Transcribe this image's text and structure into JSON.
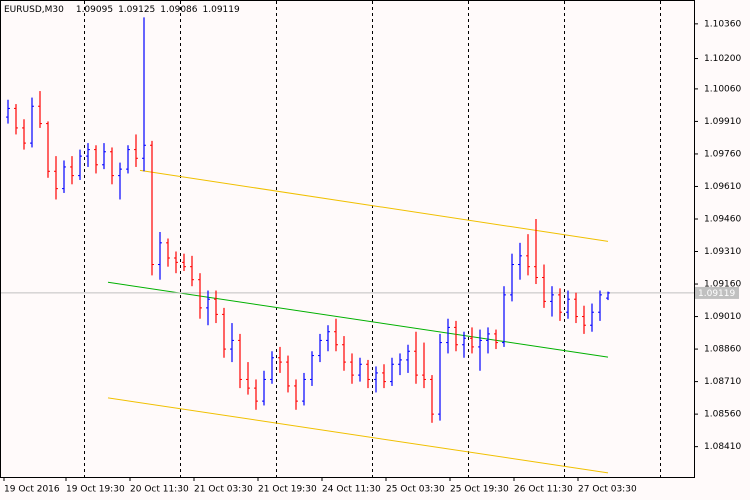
{
  "chart_data": {
    "type": "ohlc",
    "title": "EURUSD,M30",
    "last_ohlc": [
      1.09095,
      1.09125,
      1.09086,
      1.09119
    ],
    "bid": 1.09119,
    "up_color": "#0000ff",
    "down_color": "#ff0000",
    "bid_color": "#c0c0c0",
    "xlim": [
      0,
      345
    ],
    "ylim": [
      1.0827,
      1.1047
    ],
    "yticks": [
      {
        "value": 1.1036,
        "label": "1.10360"
      },
      {
        "value": 1.102,
        "label": "1.10200"
      },
      {
        "value": 1.1006,
        "label": "1.10060"
      },
      {
        "value": 1.0991,
        "label": "1.09910"
      },
      {
        "value": 1.0976,
        "label": "1.09760"
      },
      {
        "value": 1.0961,
        "label": "1.09610"
      },
      {
        "value": 1.0946,
        "label": "1.09460"
      },
      {
        "value": 1.0931,
        "label": "1.09310"
      },
      {
        "value": 1.0916,
        "label": "1.09160"
      },
      {
        "value": 1.0901,
        "label": "1.09010"
      },
      {
        "value": 1.0886,
        "label": "1.08860"
      },
      {
        "value": 1.0871,
        "label": "1.08710"
      },
      {
        "value": 1.0856,
        "label": "1.08560"
      },
      {
        "value": 1.0841,
        "label": "1.08410"
      }
    ],
    "xticks": [
      {
        "value": 0,
        "label": "19 Oct 2016"
      },
      {
        "value": 31,
        "label": "19 Oct 19:30"
      },
      {
        "value": 63,
        "label": "20 Oct 11:30"
      },
      {
        "value": 95,
        "label": "21 Oct 03:30"
      },
      {
        "value": 127,
        "label": "21 Oct 19:30"
      },
      {
        "value": 159,
        "label": "24 Oct 11:30"
      },
      {
        "value": 191,
        "label": "25 Oct 03:30"
      },
      {
        "value": 223,
        "label": "25 Oct 19:30"
      },
      {
        "value": 255,
        "label": "26 Oct 11:30"
      },
      {
        "value": 287,
        "label": "27 Oct 03:30"
      }
    ],
    "separators": [
      40,
      88,
      136,
      184,
      232,
      280,
      328
    ],
    "x": [
      2,
      6,
      10,
      14,
      18,
      22,
      26,
      30,
      34,
      38,
      42,
      46,
      50,
      54,
      58,
      62,
      66,
      70,
      74,
      78,
      82,
      86,
      90,
      94,
      98,
      102,
      106,
      110,
      114,
      118,
      122,
      126,
      130,
      134,
      138,
      142,
      146,
      150,
      154,
      158,
      162,
      166,
      170,
      174,
      178,
      182,
      186,
      190,
      194,
      198,
      202,
      206,
      210,
      214,
      218,
      222,
      226,
      230,
      234,
      238,
      242,
      246,
      250,
      254,
      258,
      262,
      266,
      270,
      274,
      278,
      282,
      286,
      290,
      294,
      298,
      302
    ],
    "open": [
      1.0993,
      1.0997,
      1.0988,
      1.0981,
      1.0998,
      1.099,
      1.0968,
      1.096,
      1.097,
      1.0966,
      1.0975,
      1.0978,
      1.0971,
      1.0977,
      1.0966,
      1.0969,
      1.0978,
      1.0974,
      1.098,
      1.0925,
      1.0935,
      1.0928,
      1.0926,
      1.0924,
      1.0918,
      1.0905,
      1.0909,
      1.0902,
      1.0886,
      1.089,
      1.0872,
      1.0868,
      1.0862,
      1.0872,
      1.0882,
      1.088,
      1.0869,
      1.0862,
      1.0872,
      1.0883,
      1.089,
      1.0894,
      1.0888,
      1.088,
      1.0874,
      1.0879,
      1.0872,
      1.0875,
      1.0871,
      1.0879,
      1.0881,
      1.0885,
      1.0874,
      1.0872,
      1.0856,
      1.0889,
      1.0896,
      1.0888,
      1.0891,
      1.0887,
      1.089,
      1.0893,
      1.0889,
      1.0911,
      1.0925,
      1.0929,
      1.0924,
      1.0919,
      1.0908,
      1.0911,
      1.0903,
      1.0909,
      1.0901,
      1.0897,
      1.0903,
      1.09095
    ],
    "high": [
      1.1001,
      1.0999,
      1.0992,
      1.1002,
      1.1005,
      1.0991,
      1.0975,
      1.0973,
      1.0975,
      1.0978,
      1.0981,
      1.098,
      1.0981,
      1.0979,
      1.0972,
      1.098,
      1.0985,
      1.1039,
      1.0982,
      1.094,
      1.0937,
      1.0931,
      1.093,
      1.0929,
      1.0921,
      1.0913,
      1.0913,
      1.0905,
      1.0898,
      1.0893,
      1.088,
      1.0872,
      1.0876,
      1.0885,
      1.0887,
      1.0883,
      1.0872,
      1.0875,
      1.0885,
      1.0893,
      1.0897,
      1.09,
      1.0892,
      1.0884,
      1.0882,
      1.0881,
      1.0878,
      1.0879,
      1.0882,
      1.0884,
      1.0888,
      1.0894,
      1.0889,
      1.0874,
      1.0893,
      1.09,
      1.0899,
      1.0894,
      1.0896,
      1.0895,
      1.0896,
      1.0895,
      1.0915,
      1.093,
      1.0935,
      1.0939,
      1.0946,
      1.0925,
      1.0915,
      1.0914,
      1.0913,
      1.0912,
      1.0906,
      1.0907,
      1.0913,
      1.09125
    ],
    "low": [
      1.099,
      1.0985,
      1.0978,
      1.0979,
      1.0988,
      1.0965,
      1.0955,
      1.0958,
      1.0962,
      1.0964,
      1.097,
      1.0967,
      1.0969,
      1.0962,
      1.0955,
      1.0967,
      1.097,
      1.0968,
      1.092,
      1.0918,
      1.0924,
      1.0921,
      1.0922,
      1.0915,
      1.09,
      1.0897,
      1.0898,
      1.0882,
      1.088,
      1.0868,
      1.0865,
      1.0858,
      1.086,
      1.087,
      1.0875,
      1.0866,
      1.0858,
      1.086,
      1.0869,
      1.088,
      1.0885,
      1.0885,
      1.0876,
      1.087,
      1.0871,
      1.0868,
      1.0866,
      1.0868,
      1.0869,
      1.0874,
      1.0875,
      1.087,
      1.0868,
      1.0852,
      1.0853,
      1.0884,
      1.0885,
      1.0882,
      1.0884,
      1.0876,
      1.0884,
      1.0886,
      1.0887,
      1.0908,
      1.0918,
      1.092,
      1.0916,
      1.0905,
      1.0901,
      1.0899,
      1.09,
      1.0898,
      1.0893,
      1.0894,
      1.0899,
      1.09086
    ],
    "close": [
      1.0997,
      1.0988,
      1.0981,
      1.0998,
      1.099,
      1.0968,
      1.096,
      1.097,
      1.0966,
      1.0975,
      1.0978,
      1.0971,
      1.0977,
      1.0966,
      1.0969,
      1.0978,
      1.0974,
      1.098,
      1.0925,
      1.0935,
      1.0928,
      1.0926,
      1.0924,
      1.0918,
      1.0905,
      1.0909,
      1.0902,
      1.0886,
      1.089,
      1.0872,
      1.0868,
      1.0862,
      1.0872,
      1.0882,
      1.088,
      1.0869,
      1.0862,
      1.0872,
      1.0883,
      1.089,
      1.0894,
      1.0888,
      1.088,
      1.0874,
      1.0879,
      1.0872,
      1.0875,
      1.0871,
      1.0879,
      1.0881,
      1.0885,
      1.0874,
      1.0872,
      1.0856,
      1.0889,
      1.0896,
      1.0888,
      1.0891,
      1.0887,
      1.089,
      1.0893,
      1.0889,
      1.0911,
      1.0925,
      1.0929,
      1.0924,
      1.0919,
      1.0908,
      1.0911,
      1.0903,
      1.0909,
      1.0901,
      1.0897,
      1.0903,
      1.0911,
      1.09119
    ],
    "trendlines": [
      {
        "color": "#f0c000",
        "x": [
          68,
          302
        ],
        "y": [
          1.09684,
          1.09357
        ]
      },
      {
        "color": "#00b000",
        "x": [
          52,
          302
        ],
        "y": [
          1.09168,
          1.08823
        ]
      },
      {
        "color": "#f0c000",
        "x": [
          52,
          302
        ],
        "y": [
          1.08635,
          1.08289
        ]
      }
    ]
  }
}
